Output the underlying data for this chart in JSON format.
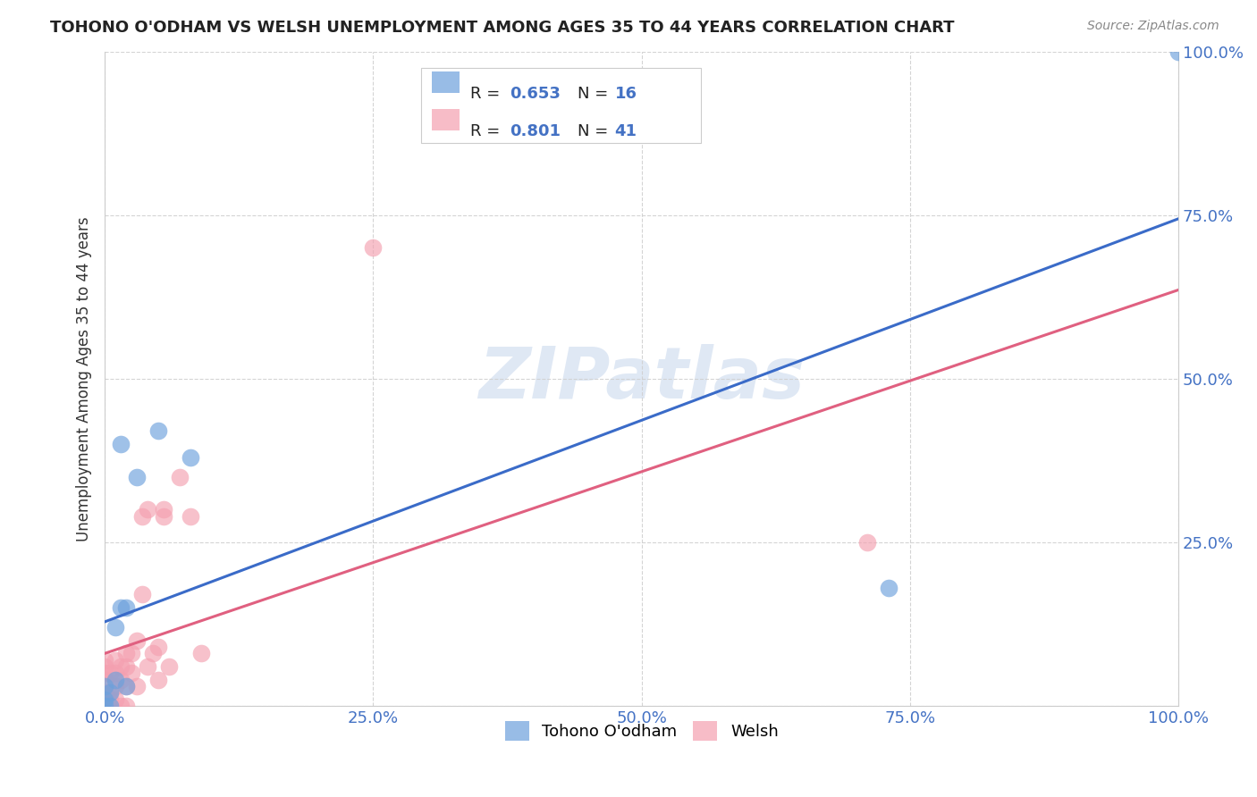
{
  "title": "TOHONO O'ODHAM VS WELSH UNEMPLOYMENT AMONG AGES 35 TO 44 YEARS CORRELATION CHART",
  "source": "Source: ZipAtlas.com",
  "ylabel": "Unemployment Among Ages 35 to 44 years",
  "watermark": "ZIPatlas",
  "xlim": [
    0.0,
    1.0
  ],
  "ylim": [
    0.0,
    1.0
  ],
  "xticks": [
    0.0,
    0.25,
    0.5,
    0.75,
    1.0
  ],
  "xticklabels": [
    "0.0%",
    "25.0%",
    "50.0%",
    "75.0%",
    "100.0%"
  ],
  "yticks": [
    0.0,
    0.25,
    0.5,
    0.75,
    1.0
  ],
  "yticklabels": [
    "",
    "25.0%",
    "50.0%",
    "75.0%",
    "100.0%"
  ],
  "tohono_color": "#6ca0dc",
  "welsh_color": "#f4a0b0",
  "tohono_line_color": "#3a6bc8",
  "welsh_line_color": "#e06080",
  "tohono_R": 0.653,
  "tohono_N": 16,
  "welsh_R": 0.801,
  "welsh_N": 41,
  "tohono_points_x": [
    0.0,
    0.0,
    0.0,
    0.005,
    0.005,
    0.01,
    0.01,
    0.015,
    0.015,
    0.02,
    0.02,
    0.03,
    0.05,
    0.08,
    0.73,
    1.0
  ],
  "tohono_points_y": [
    0.0,
    0.01,
    0.03,
    0.0,
    0.02,
    0.04,
    0.12,
    0.15,
    0.4,
    0.15,
    0.03,
    0.35,
    0.42,
    0.38,
    0.18,
    1.0
  ],
  "welsh_points_x": [
    0.0,
    0.0,
    0.0,
    0.0,
    0.0,
    0.0,
    0.0,
    0.005,
    0.005,
    0.005,
    0.005,
    0.01,
    0.01,
    0.01,
    0.01,
    0.015,
    0.015,
    0.015,
    0.02,
    0.02,
    0.02,
    0.02,
    0.025,
    0.025,
    0.03,
    0.03,
    0.035,
    0.035,
    0.04,
    0.04,
    0.045,
    0.05,
    0.05,
    0.055,
    0.055,
    0.06,
    0.07,
    0.08,
    0.09,
    0.25,
    0.71
  ],
  "welsh_points_y": [
    0.0,
    0.01,
    0.02,
    0.04,
    0.05,
    0.06,
    0.07,
    0.0,
    0.01,
    0.02,
    0.05,
    0.01,
    0.03,
    0.05,
    0.07,
    0.0,
    0.04,
    0.06,
    0.0,
    0.03,
    0.06,
    0.08,
    0.05,
    0.08,
    0.03,
    0.1,
    0.17,
    0.29,
    0.06,
    0.3,
    0.08,
    0.04,
    0.09,
    0.29,
    0.3,
    0.06,
    0.35,
    0.29,
    0.08,
    0.7,
    0.25
  ],
  "background_color": "#ffffff",
  "grid_color": "#d0d0d0"
}
